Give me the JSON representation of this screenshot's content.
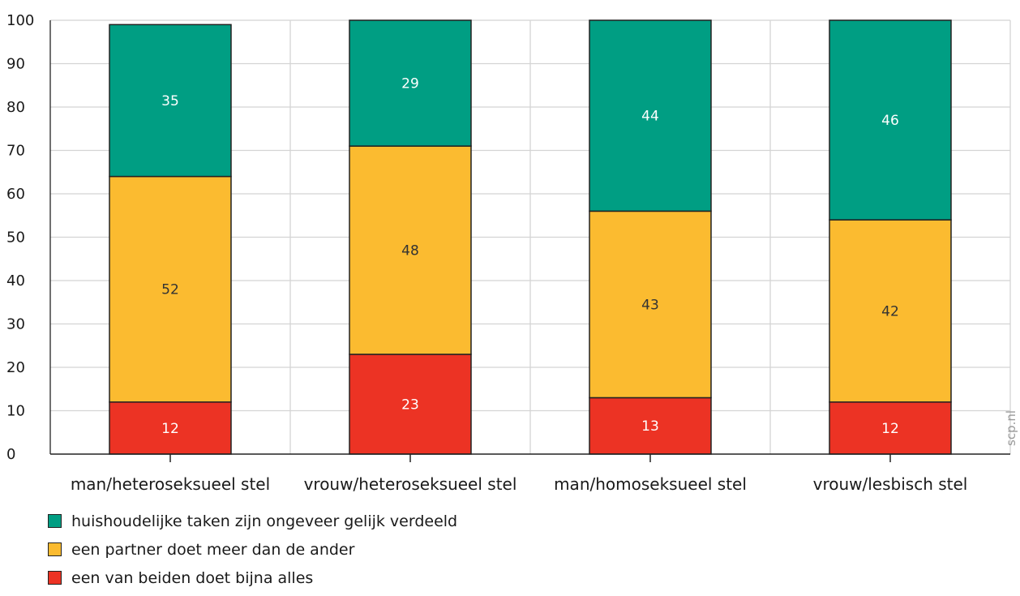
{
  "chart_data": {
    "type": "bar",
    "stacked": true,
    "categories": [
      "man/heteroseksueel stel",
      "vrouw/heteroseksueel stel",
      "man/homoseksueel stel",
      "vrouw/lesbisch stel"
    ],
    "series": [
      {
        "name": "een van beiden doet bijna alles",
        "color": "#ec3324",
        "label_color": "#ffffff",
        "values": [
          12,
          23,
          13,
          12
        ]
      },
      {
        "name": "een partner doet meer dan de ander",
        "color": "#fbbb30",
        "label_color": "#333333",
        "values": [
          52,
          48,
          43,
          42
        ]
      },
      {
        "name": "huishoudelijke taken zijn ongeveer gelijk verdeeld",
        "color": "#009e83",
        "label_color": "#ffffff",
        "values": [
          35,
          29,
          44,
          46
        ]
      }
    ],
    "ylim": [
      0,
      100
    ],
    "yticks": [
      0,
      10,
      20,
      30,
      40,
      50,
      60,
      70,
      80,
      90,
      100
    ],
    "grid": true,
    "legend_position": "bottom-left",
    "legend_order": [
      "huishoudelijke taken zijn ongeveer gelijk verdeeld",
      "een partner doet meer dan de ander",
      "een van beiden doet bijna alles"
    ],
    "title": "",
    "xlabel": "",
    "ylabel": ""
  },
  "watermark": "scp.nl"
}
